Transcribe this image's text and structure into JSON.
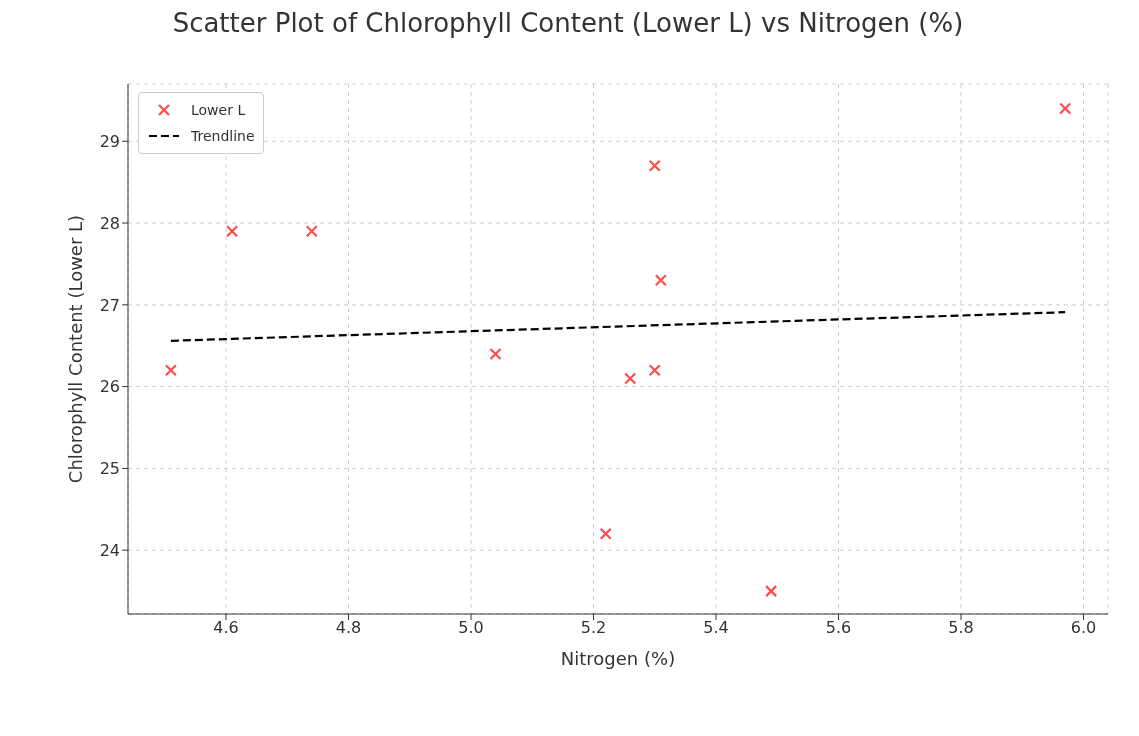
{
  "chart_data": {
    "type": "scatter",
    "title": "Scatter Plot of Chlorophyll Content (Lower L) vs Nitrogen (%)",
    "xlabel": "Nitrogen (%)",
    "ylabel": "Chlorophyll Content (Lower L)",
    "xlim": [
      4.44,
      6.04
    ],
    "xticks": [
      4.6,
      4.8,
      {
        "value": 5,
        "label": "5.0"
      },
      5.2,
      5.4,
      5.6,
      5.8,
      {
        "value": 6,
        "label": "6.0"
      }
    ],
    "ylim": [
      23.22,
      29.7
    ],
    "yticks": [
      24,
      25,
      26,
      27,
      28,
      29
    ],
    "grid": true,
    "legend": "top left",
    "series": [
      {
        "name": "Lower L",
        "marker": "cross",
        "color": "#ff4c4c",
        "x": [
          4.51,
          4.61,
          4.74,
          5.04,
          5.22,
          5.26,
          5.3,
          5.3,
          5.31,
          5.49,
          5.97
        ],
        "values": [
          26.2,
          27.9,
          27.9,
          26.4,
          24.2,
          26.1,
          28.7,
          26.2,
          27.3,
          23.5,
          29.4
        ]
      },
      {
        "name": "Trendline",
        "type": "line",
        "line_style": "dashed",
        "color": "#000000",
        "x": [
          4.51,
          5.97
        ],
        "values": [
          26.56,
          26.91
        ]
      }
    ]
  }
}
